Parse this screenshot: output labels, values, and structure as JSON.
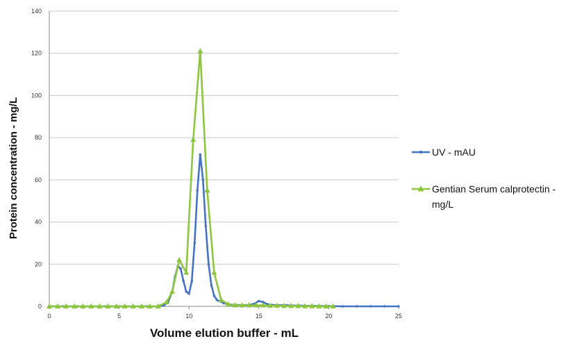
{
  "chart_data": {
    "type": "line",
    "title": "",
    "xlabel": "Volume elution buffer - mL",
    "ylabel": "Protein concentration - mg/L",
    "xlim": [
      0,
      25
    ],
    "ylim": [
      0,
      140
    ],
    "x_ticks": [
      0,
      5,
      10,
      15,
      20,
      25
    ],
    "y_ticks": [
      0,
      20,
      40,
      60,
      80,
      100,
      120,
      140
    ],
    "grid": "horizontal",
    "legend_position": "right",
    "legend_lines": [
      [
        "UV - mAU"
      ],
      [
        "Gentian Serum calprotectin -",
        "mg/L"
      ]
    ],
    "series": [
      {
        "name": "UV - mAU",
        "color": "#4472c4",
        "marker": "dot",
        "points": [
          [
            0,
            0
          ],
          [
            1,
            0
          ],
          [
            2,
            0
          ],
          [
            3,
            0
          ],
          [
            4,
            0
          ],
          [
            5,
            0
          ],
          [
            6,
            0
          ],
          [
            7,
            0
          ],
          [
            7.8,
            0
          ],
          [
            8.2,
            0.5
          ],
          [
            8.5,
            2
          ],
          [
            8.8,
            7
          ],
          [
            9.0,
            14
          ],
          [
            9.2,
            19
          ],
          [
            9.4,
            18
          ],
          [
            9.6,
            12
          ],
          [
            9.8,
            7
          ],
          [
            10.0,
            6
          ],
          [
            10.2,
            12
          ],
          [
            10.4,
            30
          ],
          [
            10.6,
            55
          ],
          [
            10.8,
            72
          ],
          [
            11.0,
            60
          ],
          [
            11.2,
            38
          ],
          [
            11.4,
            20
          ],
          [
            11.6,
            10
          ],
          [
            11.8,
            5
          ],
          [
            12.0,
            3
          ],
          [
            12.5,
            1.5
          ],
          [
            13.0,
            0.8
          ],
          [
            14.0,
            0.5
          ],
          [
            14.6,
            1
          ],
          [
            15.0,
            2.5
          ],
          [
            15.3,
            2
          ],
          [
            15.6,
            1
          ],
          [
            16.0,
            0.6
          ],
          [
            17.0,
            0.5
          ],
          [
            18.0,
            0.3
          ],
          [
            19.0,
            0.2
          ],
          [
            20.0,
            0.1
          ],
          [
            21,
            0
          ],
          [
            22,
            0
          ],
          [
            23,
            0
          ],
          [
            24,
            0
          ],
          [
            25,
            0
          ]
        ]
      },
      {
        "name": "Gentian Serum calprotectin - mg/L",
        "color": "#8dc63f",
        "marker": "triangle",
        "points": [
          [
            0,
            0
          ],
          [
            0.6,
            0
          ],
          [
            1.2,
            0
          ],
          [
            1.8,
            0
          ],
          [
            2.4,
            0
          ],
          [
            3.0,
            0
          ],
          [
            3.6,
            0
          ],
          [
            4.2,
            0
          ],
          [
            4.8,
            0
          ],
          [
            5.4,
            0
          ],
          [
            6.0,
            0
          ],
          [
            6.6,
            0
          ],
          [
            7.2,
            0
          ],
          [
            7.8,
            0
          ],
          [
            8.4,
            2
          ],
          [
            8.8,
            7
          ],
          [
            9.3,
            22
          ],
          [
            9.8,
            16
          ],
          [
            10.3,
            79
          ],
          [
            10.8,
            121
          ],
          [
            11.3,
            55
          ],
          [
            11.8,
            16
          ],
          [
            12.3,
            3
          ],
          [
            12.8,
            1
          ],
          [
            13.3,
            0.5
          ],
          [
            13.8,
            0.5
          ],
          [
            14.3,
            0.5
          ],
          [
            14.8,
            0.5
          ],
          [
            15.3,
            0.5
          ],
          [
            15.8,
            0.3
          ],
          [
            16.3,
            0.3
          ],
          [
            16.8,
            0.2
          ],
          [
            17.3,
            0.2
          ],
          [
            17.8,
            0.2
          ],
          [
            18.3,
            0.1
          ],
          [
            18.8,
            0.1
          ],
          [
            19.3,
            0
          ],
          [
            19.8,
            0
          ],
          [
            20.3,
            0
          ]
        ]
      }
    ]
  }
}
